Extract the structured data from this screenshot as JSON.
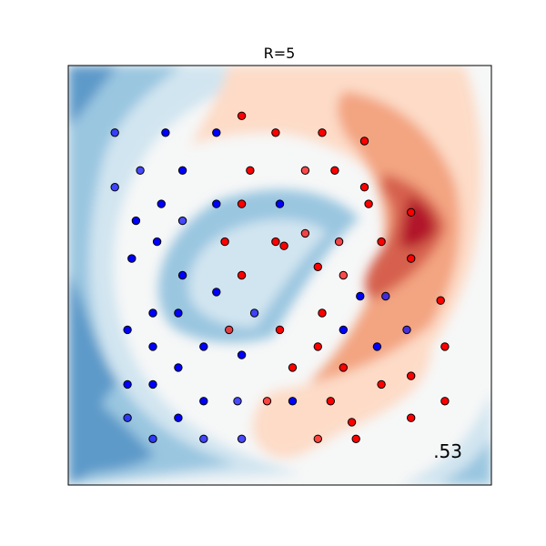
{
  "chart_data": {
    "type": "scatter",
    "title": "R=5",
    "xlabel": "",
    "ylabel": "",
    "xlim": [
      0,
      1
    ],
    "ylim": [
      0,
      1
    ],
    "grid": false,
    "annotation": ".53",
    "colors": {
      "class_blue": "#0000ff",
      "class_red": "#ff0000",
      "marker_edge": "#000000",
      "frame": "#000000",
      "bg_neutral": "#f6f7f7"
    },
    "background": {
      "description_type": "decision-surface",
      "colormap": "RdBu",
      "levels": [
        {
          "color": "#2166ac",
          "value": -0.8
        },
        {
          "color": "#5d9ac9",
          "value": -0.6
        },
        {
          "color": "#9ac6e0",
          "value": -0.4
        },
        {
          "color": "#d1e5f0",
          "value": -0.2
        },
        {
          "color": "#f6f7f7",
          "value": 0.0
        },
        {
          "color": "#fddbc7",
          "value": 0.2
        },
        {
          "color": "#f3a481",
          "value": 0.4
        },
        {
          "color": "#d6604d",
          "value": 0.6
        },
        {
          "color": "#b2182b",
          "value": 0.8
        }
      ]
    },
    "series": [
      {
        "class": "blue",
        "points": [
          {
            "x": 0.11,
            "y": 0.84,
            "alpha": 0.7
          },
          {
            "x": 0.23,
            "y": 0.84,
            "alpha": 1.0
          },
          {
            "x": 0.35,
            "y": 0.84,
            "alpha": 1.0
          },
          {
            "x": 0.17,
            "y": 0.75,
            "alpha": 0.7
          },
          {
            "x": 0.27,
            "y": 0.75,
            "alpha": 1.0
          },
          {
            "x": 0.11,
            "y": 0.71,
            "alpha": 0.7
          },
          {
            "x": 0.22,
            "y": 0.67,
            "alpha": 1.0
          },
          {
            "x": 0.35,
            "y": 0.67,
            "alpha": 1.0
          },
          {
            "x": 0.5,
            "y": 0.67,
            "alpha": 1.0
          },
          {
            "x": 0.16,
            "y": 0.63,
            "alpha": 1.0
          },
          {
            "x": 0.27,
            "y": 0.63,
            "alpha": 0.7
          },
          {
            "x": 0.21,
            "y": 0.58,
            "alpha": 1.0
          },
          {
            "x": 0.15,
            "y": 0.54,
            "alpha": 1.0
          },
          {
            "x": 0.27,
            "y": 0.5,
            "alpha": 1.0
          },
          {
            "x": 0.35,
            "y": 0.46,
            "alpha": 1.0
          },
          {
            "x": 0.69,
            "y": 0.45,
            "alpha": 1.0
          },
          {
            "x": 0.75,
            "y": 0.45,
            "alpha": 0.7
          },
          {
            "x": 0.2,
            "y": 0.41,
            "alpha": 1.0
          },
          {
            "x": 0.26,
            "y": 0.41,
            "alpha": 1.0
          },
          {
            "x": 0.44,
            "y": 0.41,
            "alpha": 0.7
          },
          {
            "x": 0.14,
            "y": 0.37,
            "alpha": 1.0
          },
          {
            "x": 0.65,
            "y": 0.37,
            "alpha": 1.0
          },
          {
            "x": 0.8,
            "y": 0.37,
            "alpha": 0.7
          },
          {
            "x": 0.2,
            "y": 0.33,
            "alpha": 1.0
          },
          {
            "x": 0.32,
            "y": 0.33,
            "alpha": 1.0
          },
          {
            "x": 0.73,
            "y": 0.33,
            "alpha": 1.0
          },
          {
            "x": 0.41,
            "y": 0.31,
            "alpha": 1.0
          },
          {
            "x": 0.26,
            "y": 0.28,
            "alpha": 1.0
          },
          {
            "x": 0.14,
            "y": 0.24,
            "alpha": 1.0
          },
          {
            "x": 0.2,
            "y": 0.24,
            "alpha": 1.0
          },
          {
            "x": 0.32,
            "y": 0.2,
            "alpha": 1.0
          },
          {
            "x": 0.4,
            "y": 0.2,
            "alpha": 0.7
          },
          {
            "x": 0.53,
            "y": 0.2,
            "alpha": 1.0
          },
          {
            "x": 0.14,
            "y": 0.16,
            "alpha": 0.7
          },
          {
            "x": 0.26,
            "y": 0.16,
            "alpha": 1.0
          },
          {
            "x": 0.2,
            "y": 0.11,
            "alpha": 0.7
          },
          {
            "x": 0.32,
            "y": 0.11,
            "alpha": 0.7
          },
          {
            "x": 0.41,
            "y": 0.11,
            "alpha": 0.7
          }
        ]
      },
      {
        "class": "red",
        "points": [
          {
            "x": 0.41,
            "y": 0.88,
            "alpha": 1.0
          },
          {
            "x": 0.49,
            "y": 0.84,
            "alpha": 1.0
          },
          {
            "x": 0.6,
            "y": 0.84,
            "alpha": 1.0
          },
          {
            "x": 0.7,
            "y": 0.82,
            "alpha": 1.0
          },
          {
            "x": 0.43,
            "y": 0.75,
            "alpha": 1.0
          },
          {
            "x": 0.56,
            "y": 0.75,
            "alpha": 0.7
          },
          {
            "x": 0.63,
            "y": 0.75,
            "alpha": 1.0
          },
          {
            "x": 0.7,
            "y": 0.71,
            "alpha": 1.0
          },
          {
            "x": 0.41,
            "y": 0.67,
            "alpha": 1.0
          },
          {
            "x": 0.71,
            "y": 0.67,
            "alpha": 1.0
          },
          {
            "x": 0.81,
            "y": 0.65,
            "alpha": 1.0
          },
          {
            "x": 0.56,
            "y": 0.6,
            "alpha": 0.7
          },
          {
            "x": 0.37,
            "y": 0.58,
            "alpha": 1.0
          },
          {
            "x": 0.49,
            "y": 0.58,
            "alpha": 1.0
          },
          {
            "x": 0.64,
            "y": 0.58,
            "alpha": 0.7
          },
          {
            "x": 0.74,
            "y": 0.58,
            "alpha": 1.0
          },
          {
            "x": 0.51,
            "y": 0.57,
            "alpha": 1.0
          },
          {
            "x": 0.81,
            "y": 0.54,
            "alpha": 1.0
          },
          {
            "x": 0.59,
            "y": 0.52,
            "alpha": 1.0
          },
          {
            "x": 0.41,
            "y": 0.5,
            "alpha": 1.0
          },
          {
            "x": 0.65,
            "y": 0.5,
            "alpha": 0.7
          },
          {
            "x": 0.88,
            "y": 0.44,
            "alpha": 1.0
          },
          {
            "x": 0.6,
            "y": 0.41,
            "alpha": 1.0
          },
          {
            "x": 0.38,
            "y": 0.37,
            "alpha": 0.7
          },
          {
            "x": 0.5,
            "y": 0.37,
            "alpha": 1.0
          },
          {
            "x": 0.59,
            "y": 0.33,
            "alpha": 1.0
          },
          {
            "x": 0.89,
            "y": 0.33,
            "alpha": 1.0
          },
          {
            "x": 0.53,
            "y": 0.28,
            "alpha": 1.0
          },
          {
            "x": 0.65,
            "y": 0.28,
            "alpha": 1.0
          },
          {
            "x": 0.81,
            "y": 0.26,
            "alpha": 1.0
          },
          {
            "x": 0.74,
            "y": 0.24,
            "alpha": 1.0
          },
          {
            "x": 0.47,
            "y": 0.2,
            "alpha": 0.7
          },
          {
            "x": 0.62,
            "y": 0.2,
            "alpha": 1.0
          },
          {
            "x": 0.89,
            "y": 0.2,
            "alpha": 1.0
          },
          {
            "x": 0.81,
            "y": 0.16,
            "alpha": 1.0
          },
          {
            "x": 0.67,
            "y": 0.15,
            "alpha": 1.0
          },
          {
            "x": 0.59,
            "y": 0.11,
            "alpha": 0.7
          },
          {
            "x": 0.68,
            "y": 0.11,
            "alpha": 1.0
          }
        ]
      }
    ]
  }
}
